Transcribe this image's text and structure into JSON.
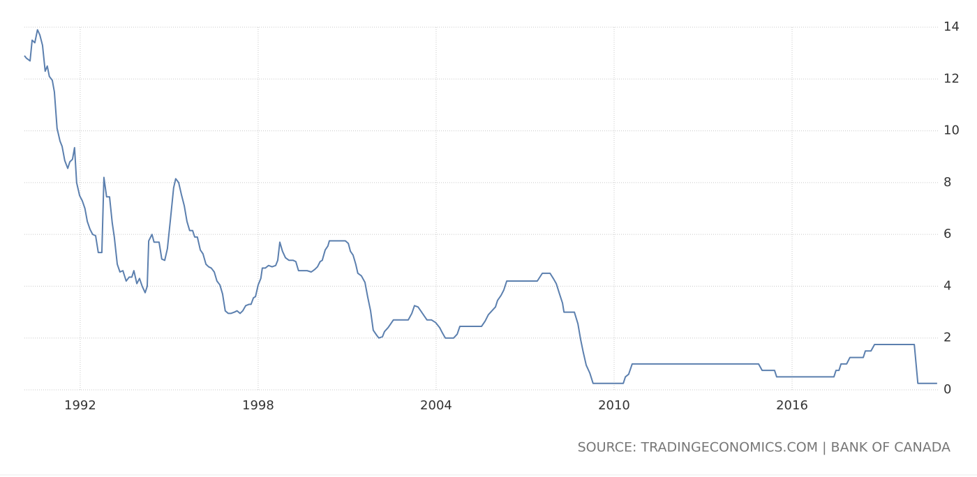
{
  "chart_data": {
    "type": "line",
    "source": "SOURCE: TRADINGECONOMICS.COM | BANK OF CANADA",
    "color": "#5b7fae",
    "grid": true,
    "xlim": [
      1990.12,
      2020.94
    ],
    "xticks": [
      1992,
      1998,
      2004,
      2010,
      2016
    ],
    "ylim": [
      0,
      14
    ],
    "yticks": [
      0,
      2,
      4,
      6,
      8,
      10,
      12,
      14
    ],
    "x": [
      1990.12,
      1990.19,
      1990.31,
      1990.38,
      1990.47,
      1990.56,
      1990.64,
      1990.73,
      1990.82,
      1990.89,
      1990.96,
      1991.06,
      1991.13,
      1991.22,
      1991.32,
      1991.39,
      1991.48,
      1991.58,
      1991.65,
      1991.74,
      1991.81,
      1991.88,
      1991.98,
      1992.07,
      1992.16,
      1992.24,
      1992.33,
      1992.42,
      1992.52,
      1992.61,
      1992.73,
      1992.8,
      1992.89,
      1992.99,
      1993.08,
      1993.15,
      1993.25,
      1993.34,
      1993.44,
      1993.55,
      1993.65,
      1993.74,
      1993.81,
      1993.91,
      1994.0,
      1994.09,
      1994.19,
      1994.26,
      1994.31,
      1994.42,
      1994.49,
      1994.66,
      1994.75,
      1994.85,
      1994.94,
      1995.04,
      1995.15,
      1995.22,
      1995.32,
      1995.41,
      1995.51,
      1995.6,
      1995.69,
      1995.79,
      1995.86,
      1995.95,
      1996.05,
      1996.14,
      1996.24,
      1996.33,
      1996.42,
      1996.52,
      1996.61,
      1996.71,
      1996.8,
      1996.89,
      1996.99,
      1997.08,
      1997.2,
      1997.29,
      1997.39,
      1997.48,
      1997.58,
      1997.69,
      1997.76,
      1997.84,
      1997.91,
      1998.0,
      1998.09,
      1998.14,
      1998.24,
      1998.35,
      1998.47,
      1998.59,
      1998.66,
      1998.73,
      1998.82,
      1998.92,
      1999.04,
      1999.18,
      1999.27,
      1999.36,
      1999.48,
      1999.65,
      1999.79,
      1999.91,
      2000.0,
      2000.09,
      2000.16,
      2000.26,
      2000.35,
      2000.4,
      2000.52,
      2000.66,
      2000.82,
      2000.94,
      2001.04,
      2001.11,
      2001.2,
      2001.29,
      2001.36,
      2001.48,
      2001.6,
      2001.69,
      2001.79,
      2001.88,
      2002.0,
      2002.07,
      2002.19,
      2002.26,
      2002.38,
      2002.47,
      2002.56,
      2003.06,
      2003.18,
      2003.27,
      2003.39,
      2003.48,
      2003.6,
      2003.69,
      2003.84,
      2003.98,
      2004.12,
      2004.21,
      2004.31,
      2004.59,
      2004.71,
      2004.8,
      2005.53,
      2005.65,
      2005.76,
      2005.88,
      2006.0,
      2006.07,
      2006.19,
      2006.28,
      2006.38,
      2007.41,
      2007.58,
      2007.84,
      2007.95,
      2008.05,
      2008.16,
      2008.26,
      2008.31,
      2008.66,
      2008.78,
      2008.87,
      2008.96,
      2009.06,
      2009.18,
      2009.29,
      2010.31,
      2010.38,
      2010.49,
      2010.61,
      2014.87,
      2014.99,
      2015.41,
      2015.48,
      2017.41,
      2017.48,
      2017.58,
      2017.65,
      2017.84,
      2017.95,
      2018.4,
      2018.47,
      2018.66,
      2018.78,
      2020.12,
      2020.24,
      2020.89
    ],
    "values": [
      12.9,
      12.8,
      12.7,
      13.5,
      13.4,
      13.9,
      13.7,
      13.3,
      12.3,
      12.5,
      12.1,
      11.95,
      11.5,
      10.1,
      9.6,
      9.4,
      8.85,
      8.55,
      8.8,
      8.9,
      9.35,
      8.0,
      7.5,
      7.3,
      7.0,
      6.5,
      6.2,
      6.0,
      5.95,
      5.3,
      5.3,
      8.2,
      7.45,
      7.45,
      6.45,
      5.9,
      4.85,
      4.55,
      4.6,
      4.2,
      4.35,
      4.35,
      4.6,
      4.1,
      4.3,
      4.0,
      3.75,
      4.0,
      5.75,
      6.0,
      5.7,
      5.7,
      5.05,
      5.0,
      5.45,
      6.55,
      7.8,
      8.15,
      8.0,
      7.55,
      7.1,
      6.5,
      6.15,
      6.15,
      5.9,
      5.9,
      5.4,
      5.25,
      4.85,
      4.75,
      4.7,
      4.55,
      4.2,
      4.05,
      3.7,
      3.05,
      2.95,
      2.95,
      3.0,
      3.05,
      2.95,
      3.05,
      3.25,
      3.3,
      3.3,
      3.55,
      3.6,
      4.05,
      4.3,
      4.7,
      4.7,
      4.8,
      4.75,
      4.8,
      5.0,
      5.7,
      5.35,
      5.1,
      5.0,
      5.0,
      4.95,
      4.6,
      4.6,
      4.6,
      4.55,
      4.65,
      4.75,
      4.95,
      5.0,
      5.4,
      5.55,
      5.75,
      5.75,
      5.75,
      5.75,
      5.75,
      5.65,
      5.35,
      5.2,
      4.85,
      4.5,
      4.4,
      4.15,
      3.6,
      3.05,
      2.3,
      2.1,
      2.0,
      2.05,
      2.25,
      2.4,
      2.55,
      2.7,
      2.7,
      2.95,
      3.25,
      3.2,
      3.05,
      2.85,
      2.7,
      2.7,
      2.6,
      2.4,
      2.2,
      2.0,
      2.0,
      2.15,
      2.45,
      2.45,
      2.65,
      2.9,
      3.05,
      3.2,
      3.45,
      3.65,
      3.85,
      4.2,
      4.2,
      4.5,
      4.5,
      4.3,
      4.1,
      3.7,
      3.35,
      3.0,
      3.0,
      2.55,
      1.95,
      1.45,
      0.95,
      0.65,
      0.25,
      0.25,
      0.5,
      0.6,
      1.0,
      1.0,
      0.75,
      0.75,
      0.5,
      0.5,
      0.75,
      0.75,
      1.0,
      1.0,
      1.25,
      1.25,
      1.5,
      1.5,
      1.75,
      1.75,
      0.25,
      0.25
    ]
  }
}
